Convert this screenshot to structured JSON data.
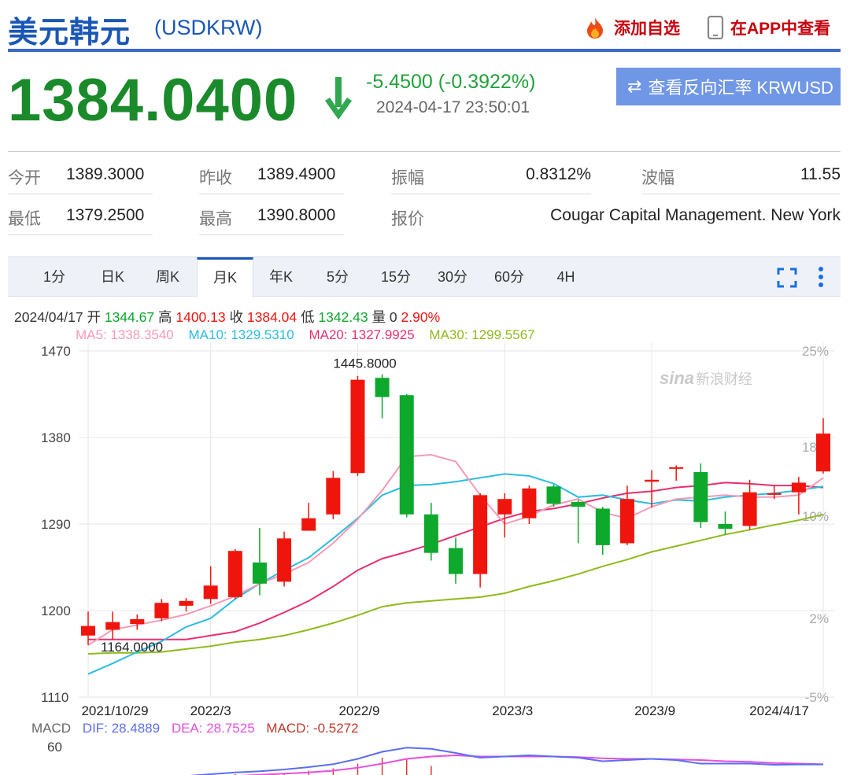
{
  "header": {
    "title": "美元韩元",
    "code": "(USDKRW)",
    "add_favorite": "添加自选",
    "view_in_app": "在APP中查看"
  },
  "quote": {
    "price": "1384.0400",
    "change": "-5.4500 (-0.3922%)",
    "time": "2024-04-17 23:50:01",
    "reverse_button": "查看反向汇率 KRWUSD",
    "direction": "down"
  },
  "stats": [
    {
      "label": "今开",
      "value": "1389.3000"
    },
    {
      "label": "昨收",
      "value": "1389.4900"
    },
    {
      "label": "振幅",
      "value": "0.8312%"
    },
    {
      "label": "波幅",
      "value": "11.55"
    },
    {
      "label": "最低",
      "value": "1379.2500"
    },
    {
      "label": "最高",
      "value": "1390.8000"
    },
    {
      "label": "报价",
      "value": "Cougar Capital Management. New York"
    }
  ],
  "tabs": [
    "1分",
    "日K",
    "周K",
    "月K",
    "年K",
    "5分",
    "15分",
    "30分",
    "60分",
    "4H"
  ],
  "active_tab": "月K",
  "kline_info": {
    "date": "2024/04/17",
    "open_label": "开",
    "open": "1344.67",
    "high_label": "高",
    "high": "1400.13",
    "close_label": "收",
    "close": "1384.04",
    "low_label": "低",
    "low": "1342.43",
    "volume_label": "量",
    "volume": "0",
    "pct": "2.90%"
  },
  "ma": {
    "ma5": "MA5: 1338.3540",
    "ma10": "MA10: 1329.5310",
    "ma20": "MA20: 1327.9925",
    "ma30": "MA30: 1299.5567"
  },
  "macd": {
    "label": "MACD",
    "dif": "DIF: 28.4889",
    "dea": "DEA: 28.7525",
    "macd": "MACD: -0.5272",
    "axis_top": "60"
  },
  "watermark": "新浪财经",
  "colors": {
    "up": "#f0150c",
    "down": "#0ea82d",
    "ma5": "#f59ab5",
    "ma10": "#2bbde0",
    "ma20": "#e8306b",
    "ma30": "#8fba1d",
    "brand": "#1a57b5"
  },
  "chart_data": {
    "type": "candlestick",
    "period": "monthly",
    "y_ticks": [
      "1470",
      "1380",
      "1290",
      "1200",
      "1110"
    ],
    "y_pct_ticks": [
      "25%",
      "18%",
      "10%",
      "2%",
      "-5%"
    ],
    "ylim": [
      1110,
      1470
    ],
    "x_ticks": [
      "2021/10/29",
      "2022/3",
      "2022/9",
      "2023/3",
      "2023/9",
      "2024/4/17"
    ],
    "max_label": "1445.8000",
    "min_label": "1164.0000",
    "candles": [
      {
        "o": 1174,
        "c": 1184,
        "h": 1199,
        "l": 1164
      },
      {
        "o": 1180,
        "c": 1188,
        "h": 1199,
        "l": 1170
      },
      {
        "o": 1186,
        "c": 1191,
        "h": 1196,
        "l": 1180
      },
      {
        "o": 1192,
        "c": 1208,
        "h": 1212,
        "l": 1189
      },
      {
        "o": 1205,
        "c": 1210,
        "h": 1213,
        "l": 1199
      },
      {
        "o": 1212,
        "c": 1226,
        "h": 1246,
        "l": 1207
      },
      {
        "o": 1214,
        "c": 1262,
        "h": 1264,
        "l": 1212
      },
      {
        "o": 1250,
        "c": 1228,
        "h": 1286,
        "l": 1216
      },
      {
        "o": 1230,
        "c": 1275,
        "h": 1282,
        "l": 1225
      },
      {
        "o": 1283,
        "c": 1296,
        "h": 1312,
        "l": 1283
      },
      {
        "o": 1300,
        "c": 1338,
        "h": 1345,
        "l": 1295
      },
      {
        "o": 1343,
        "c": 1440,
        "h": 1444,
        "l": 1340
      },
      {
        "o": 1442,
        "c": 1422,
        "h": 1445.8,
        "l": 1400
      },
      {
        "o": 1424,
        "c": 1300,
        "h": 1425,
        "l": 1297
      },
      {
        "o": 1300,
        "c": 1260,
        "h": 1312,
        "l": 1252
      },
      {
        "o": 1265,
        "c": 1238,
        "h": 1276,
        "l": 1228
      },
      {
        "o": 1238,
        "c": 1320,
        "h": 1322,
        "l": 1224
      },
      {
        "o": 1300,
        "c": 1316,
        "h": 1322,
        "l": 1276
      },
      {
        "o": 1296,
        "c": 1327,
        "h": 1330,
        "l": 1290
      },
      {
        "o": 1329,
        "c": 1311,
        "h": 1331,
        "l": 1308
      },
      {
        "o": 1313,
        "c": 1308,
        "h": 1315,
        "l": 1270
      },
      {
        "o": 1306,
        "c": 1268,
        "h": 1308,
        "l": 1258
      },
      {
        "o": 1270,
        "c": 1316,
        "h": 1330,
        "l": 1268
      },
      {
        "o": 1334,
        "c": 1336,
        "h": 1346,
        "l": 1307
      },
      {
        "o": 1348,
        "c": 1349,
        "h": 1351,
        "l": 1335
      },
      {
        "o": 1344,
        "c": 1292,
        "h": 1353,
        "l": 1286
      },
      {
        "o": 1290,
        "c": 1285,
        "h": 1303,
        "l": 1279
      },
      {
        "o": 1288,
        "c": 1323,
        "h": 1336,
        "l": 1284
      },
      {
        "o": 1322,
        "c": 1322,
        "h": 1330,
        "l": 1316
      },
      {
        "o": 1323,
        "c": 1333,
        "h": 1339,
        "l": 1300
      },
      {
        "o": 1344.67,
        "c": 1384.04,
        "h": 1400.13,
        "l": 1342.43
      }
    ],
    "ma5": [
      1164,
      1180,
      1185,
      1190,
      1196,
      1205,
      1215,
      1228,
      1238,
      1250,
      1270,
      1295,
      1325,
      1360,
      1362,
      1355,
      1320,
      1290,
      1298,
      1310,
      1316,
      1302,
      1296,
      1308,
      1316,
      1318,
      1320,
      1318,
      1318,
      1320,
      1338
    ],
    "ma10": [
      1134,
      1145,
      1157,
      1168,
      1183,
      1192,
      1212,
      1228,
      1242,
      1255,
      1275,
      1296,
      1320,
      1330,
      1331,
      1334,
      1338,
      1342,
      1340,
      1332,
      1318,
      1320,
      1315,
      1311,
      1315,
      1314,
      1318,
      1320,
      1322,
      1325,
      1329
    ],
    "ma20": [
      1170,
      1170,
      1170,
      1170,
      1170,
      1174,
      1178,
      1187,
      1198,
      1210,
      1225,
      1242,
      1254,
      1261,
      1269,
      1278,
      1287,
      1296,
      1303,
      1306,
      1311,
      1317,
      1322,
      1324,
      1328,
      1330,
      1333,
      1332,
      1330,
      1330,
      1328
    ],
    "ma30": [
      1155,
      1156,
      1156,
      1157,
      1160,
      1163,
      1167,
      1170,
      1174,
      1180,
      1187,
      1195,
      1204,
      1208,
      1210,
      1212,
      1214,
      1218,
      1225,
      1231,
      1238,
      1246,
      1253,
      1261,
      1267,
      1273,
      1279,
      1284,
      1289,
      1294,
      1300
    ],
    "macd_dif": [
      2,
      4,
      6,
      8,
      9,
      12,
      15,
      17,
      20,
      24,
      29,
      38,
      50,
      57,
      55,
      48,
      40,
      42,
      44,
      42,
      40,
      34,
      36,
      38,
      36,
      30,
      30,
      30,
      28,
      28.5,
      28.49
    ],
    "macd_dea": [
      1,
      2,
      3,
      4,
      5,
      7,
      9,
      11,
      13,
      15,
      18,
      23,
      30,
      38,
      42,
      44,
      42,
      42,
      42,
      42,
      41,
      39,
      38,
      38,
      37,
      36,
      34,
      33,
      31,
      30,
      28.75
    ],
    "macd_hist": [
      2,
      4,
      6,
      8,
      8,
      10,
      12,
      12,
      14,
      18,
      22,
      30,
      40,
      38,
      26,
      8,
      -4,
      0,
      4,
      0,
      -2,
      -10,
      -4,
      0,
      -2,
      -12,
      -8,
      -6,
      -6,
      -3,
      -0.53
    ]
  }
}
